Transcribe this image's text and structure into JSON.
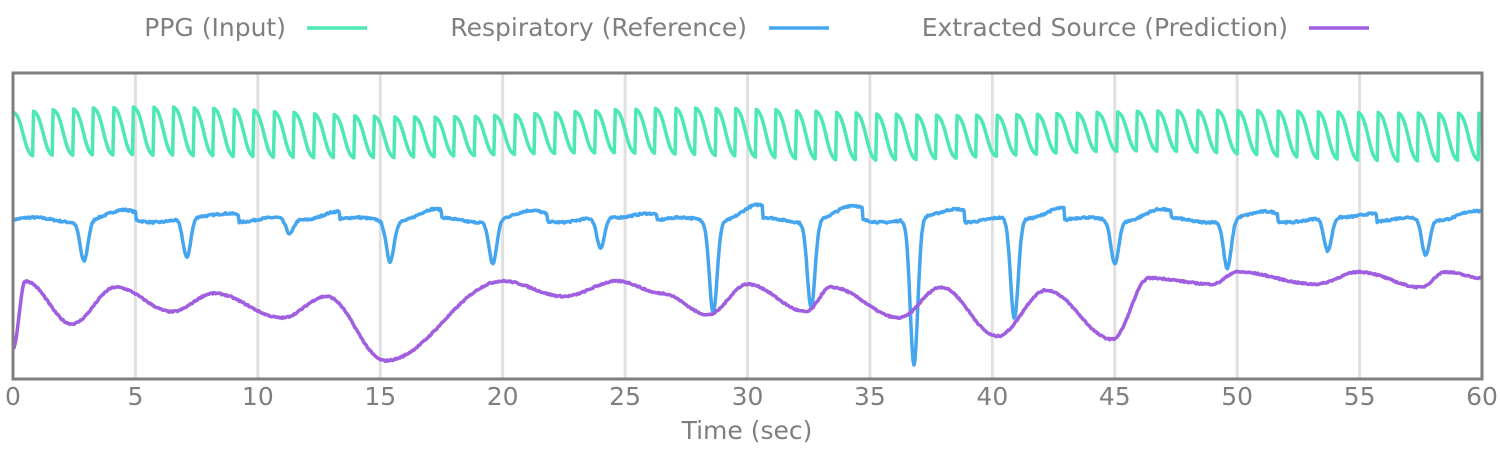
{
  "chart_data": {
    "type": "line",
    "title": "",
    "xlabel": "Time (sec)",
    "ylabel": "",
    "xlim": [
      0,
      60
    ],
    "x_ticks": [
      0,
      5,
      10,
      15,
      20,
      25,
      30,
      35,
      40,
      45,
      50,
      55,
      60
    ],
    "grid": "vertical",
    "legend_position": "top",
    "series": [
      {
        "name": "PPG (Input)",
        "color": "#4de8b4",
        "kind": "oscillation",
        "period": 0.82,
        "baseline": 0.8,
        "amplitude": 0.085,
        "x": [
          0,
          60
        ]
      },
      {
        "name": "Respiratory (Reference)",
        "color": "#46a5ef",
        "kind": "dips",
        "baseline": 0.52,
        "dips_x": [
          2.9,
          7.1,
          11.3,
          15.4,
          19.6,
          24.0,
          28.6,
          32.6,
          36.8,
          40.9,
          45.0,
          49.6,
          53.7,
          57.7
        ],
        "dips_y": [
          0.39,
          0.39,
          0.47,
          0.39,
          0.38,
          0.42,
          0.22,
          0.24,
          0.04,
          0.19,
          0.38,
          0.36,
          0.41,
          0.4
        ]
      },
      {
        "name": "Extracted Source (Prediction)",
        "color": "#a05fe0",
        "kind": "wave",
        "x": [
          0,
          0.5,
          2.4,
          4.2,
          6.5,
          8.2,
          11.0,
          12.8,
          15.2,
          20.0,
          22.5,
          24.7,
          26.5,
          28.4,
          30.0,
          32.4,
          33.4,
          36.2,
          37.9,
          40.2,
          42.2,
          44.9,
          46.4,
          49.0,
          50.0,
          53.2,
          55.0,
          57.5,
          58.5,
          60.0
        ],
        "y": [
          0.1,
          0.32,
          0.18,
          0.3,
          0.22,
          0.28,
          0.2,
          0.27,
          0.06,
          0.32,
          0.27,
          0.32,
          0.28,
          0.21,
          0.31,
          0.22,
          0.3,
          0.2,
          0.3,
          0.14,
          0.29,
          0.13,
          0.33,
          0.31,
          0.35,
          0.31,
          0.35,
          0.3,
          0.35,
          0.33
        ]
      }
    ]
  }
}
